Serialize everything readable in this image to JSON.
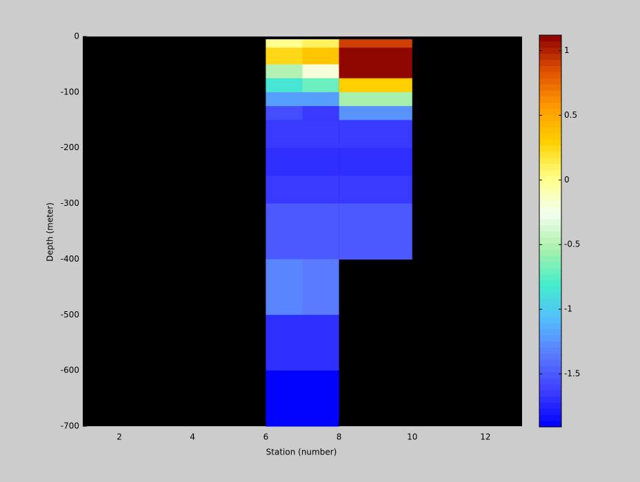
{
  "chart_data": {
    "type": "heatmap",
    "xlabel": "Station (number)",
    "ylabel": "Depth (meter)",
    "xlim": [
      1,
      13
    ],
    "xticks": [
      2,
      4,
      6,
      8,
      10,
      12
    ],
    "ylim": [
      -700,
      0
    ],
    "yticks": [
      0,
      -100,
      -200,
      -300,
      -400,
      -500,
      -600,
      -700
    ],
    "x_edges": [
      6,
      7,
      8,
      10
    ],
    "y_edges": [
      -5,
      -20,
      -50,
      -75,
      -100,
      -125,
      -150,
      -200,
      -250,
      -300,
      -400,
      -500,
      -600,
      -700
    ],
    "z": [
      [
        0.0,
        0.1,
        0.9
      ],
      [
        0.25,
        0.35,
        1.1
      ],
      [
        -0.5,
        -0.2,
        1.1
      ],
      [
        -0.85,
        -0.7,
        0.3
      ],
      [
        -1.2,
        -1.2,
        -0.55
      ],
      [
        -1.55,
        -1.65,
        -1.25
      ],
      [
        -1.65,
        -1.65,
        -1.65
      ],
      [
        -1.7,
        -1.7,
        -1.7
      ],
      [
        -1.65,
        -1.65,
        -1.65
      ],
      [
        -1.5,
        -1.5,
        -1.5
      ],
      [
        -1.3,
        -1.35,
        null
      ],
      [
        -1.7,
        -1.7,
        null
      ],
      [
        -1.9,
        -1.9,
        null
      ]
    ],
    "background": "#000000",
    "clim": [
      -1.91,
      1.12
    ],
    "cticks": [
      -1.5,
      -1,
      -0.5,
      0,
      0.5,
      1
    ],
    "colormap": [
      "#0000ff",
      "#3c3cff",
      "#5a78ff",
      "#55bbff",
      "#44eecc",
      "#aaf0aa",
      "#f4fff0",
      "#ffff88",
      "#ffd000",
      "#ff9900",
      "#e05000",
      "#8a0000"
    ],
    "colorbar_levels": 64
  }
}
